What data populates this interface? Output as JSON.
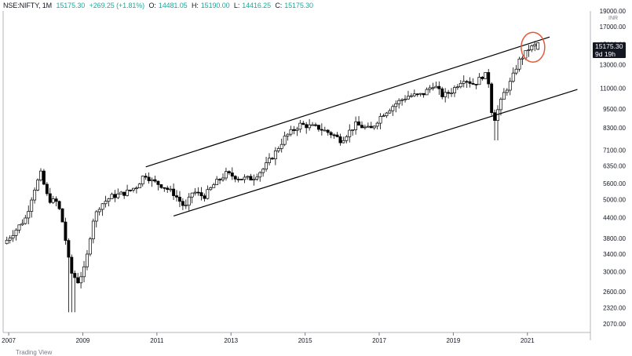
{
  "header": {
    "symbol": "NSE:NIFTY, 1M",
    "close_top": "15175.30",
    "change": "+269.25 (+1.81%)",
    "open_key": "O:",
    "open_val": "14481.05",
    "high_key": "H:",
    "high_val": "15190.00",
    "low_key": "L:",
    "low_val": "14416.25",
    "close_key": "C:",
    "close_val": "15175.30"
  },
  "price_label": {
    "price": "15175.30",
    "countdown": "9d 19h"
  },
  "currency": "INR",
  "footer": "Trading View",
  "colors": {
    "up_body": "#ffffff",
    "down_body": "#000000",
    "outline": "#000000",
    "trendline": "#000000",
    "highlight": "#e25c3b"
  },
  "chart_data": {
    "type": "candlestick",
    "scale": "log",
    "ylim": [
      1950,
      19000
    ],
    "xlim": [
      2006.9,
      2022.75
    ],
    "yticks": [
      "2070.00",
      "2320.00",
      "2600.00",
      "3000.00",
      "3400.00",
      "3800.00",
      "4400.00",
      "5000.00",
      "5600.00",
      "6350.00",
      "7100.00",
      "8300.00",
      "9500.00",
      "11000.00",
      "13000.00",
      "15000.00",
      "17000.00",
      "19000.00"
    ],
    "xticks": [
      "2007",
      "2009",
      "2011",
      "2013",
      "2015",
      "2017",
      "2019",
      "2021"
    ],
    "last_candle": {
      "open": 14481.05,
      "high": 15190.0,
      "low": 14416.25,
      "close": 15175.3
    },
    "anchors": [
      [
        2006.9,
        3550
      ],
      [
        2007.3,
        4000
      ],
      [
        2007.6,
        4400
      ],
      [
        2007.8,
        5300
      ],
      [
        2008.0,
        6000
      ],
      [
        2008.2,
        5000
      ],
      [
        2008.45,
        4900
      ],
      [
        2008.6,
        4200
      ],
      [
        2008.8,
        3000
      ],
      [
        2009.0,
        2800
      ],
      [
        2009.2,
        3100
      ],
      [
        2009.4,
        4300
      ],
      [
        2009.6,
        4800
      ],
      [
        2009.9,
        5100
      ],
      [
        2010.3,
        5250
      ],
      [
        2010.6,
        5500
      ],
      [
        2010.8,
        6000
      ],
      [
        2011.0,
        5700
      ],
      [
        2011.3,
        5500
      ],
      [
        2011.6,
        5200
      ],
      [
        2011.9,
        4700
      ],
      [
        2012.1,
        5300
      ],
      [
        2012.4,
        5100
      ],
      [
        2012.7,
        5600
      ],
      [
        2013.0,
        6000
      ],
      [
        2013.4,
        5800
      ],
      [
        2013.7,
        5800
      ],
      [
        2014.0,
        6200
      ],
      [
        2014.3,
        6900
      ],
      [
        2014.6,
        7800
      ],
      [
        2015.0,
        8500
      ],
      [
        2015.5,
        8300
      ],
      [
        2015.9,
        7900
      ],
      [
        2016.1,
        7600
      ],
      [
        2016.5,
        8500
      ],
      [
        2016.9,
        8200
      ],
      [
        2017.2,
        9100
      ],
      [
        2017.6,
        9900
      ],
      [
        2017.9,
        10400
      ],
      [
        2018.3,
        10500
      ],
      [
        2018.6,
        11300
      ],
      [
        2018.85,
        10400
      ],
      [
        2019.1,
        10800
      ],
      [
        2019.4,
        11800
      ],
      [
        2019.7,
        11300
      ],
      [
        2019.95,
        12100
      ],
      [
        2020.05,
        12000
      ],
      [
        2020.1,
        11200
      ],
      [
        2020.2,
        8600
      ],
      [
        2020.3,
        9200
      ],
      [
        2020.5,
        10600
      ],
      [
        2020.7,
        11600
      ],
      [
        2020.85,
        12900
      ],
      [
        2020.95,
        13600
      ],
      [
        2021.05,
        13900
      ],
      [
        2021.15,
        14500
      ],
      [
        2021.35,
        14900
      ]
    ],
    "trendlines": [
      {
        "points": [
          [
            2010.75,
            6300
          ],
          [
            2021.65,
            15800
          ]
        ]
      },
      {
        "points": [
          [
            2011.5,
            4450
          ],
          [
            2022.4,
            10900
          ]
        ]
      }
    ],
    "annotation": {
      "type": "circle",
      "center": [
        2021.2,
        14700
      ]
    }
  }
}
